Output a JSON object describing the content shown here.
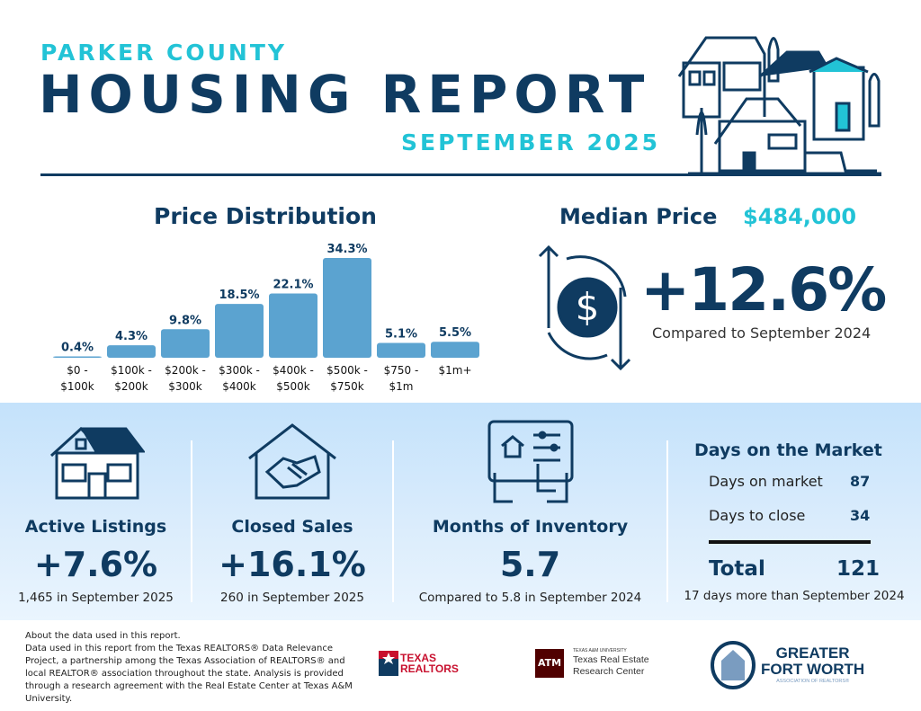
{
  "header": {
    "county": "PARKER COUNTY",
    "title": "HOUSING REPORT",
    "month": "SEPTEMBER 2025"
  },
  "price_distribution": {
    "title": "Price Distribution"
  },
  "chart_data": {
    "type": "bar",
    "title": "Price Distribution",
    "categories": [
      "$0 - $100k",
      "$100k - $200k",
      "$200k - $300k",
      "$300k - $400k",
      "$400k - $500k",
      "$500k - $750k",
      "$750 - $1m",
      "$1m+"
    ],
    "category_lines": [
      [
        "$0 -",
        "$100k"
      ],
      [
        "$100k -",
        "$200k"
      ],
      [
        "$200k -",
        "$300k"
      ],
      [
        "$300k -",
        "$400k"
      ],
      [
        "$400k -",
        "$500k"
      ],
      [
        "$500k -",
        "$750k"
      ],
      [
        "$750 -",
        "$1m"
      ],
      [
        "$1m+",
        ""
      ]
    ],
    "values": [
      0.4,
      4.3,
      9.8,
      18.5,
      22.1,
      34.3,
      5.1,
      5.5
    ],
    "labels": [
      "0.4%",
      "4.3%",
      "9.8%",
      "18.5%",
      "22.1%",
      "34.3%",
      "5.1%",
      "5.5%"
    ],
    "unit": "%",
    "bar_color": "#5ba3d0",
    "label_color": "#0f3b61"
  },
  "median": {
    "label": "Median Price",
    "value": "$484,000",
    "change": "+12.6%",
    "compare": "Compared to September 2024"
  },
  "stats": [
    {
      "label": "Active Listings",
      "value": "+7.6%",
      "sub": "1,465 in September 2025",
      "icon": "house-icon"
    },
    {
      "label": "Closed Sales",
      "value": "+16.1%",
      "sub": "260 in September 2025",
      "icon": "handshake-house-icon"
    },
    {
      "label": "Months of Inventory",
      "value": "5.7",
      "sub": "Compared to 5.8 in September 2024",
      "icon": "tablet-icon"
    }
  ],
  "dom": {
    "title": "Days on the Market",
    "rows": [
      {
        "label": "Days on market",
        "value": "87"
      },
      {
        "label": "Days to close",
        "value": "34"
      }
    ],
    "total_label": "Total",
    "total_value": "121",
    "sub": "17 days more than September 2024"
  },
  "footer": {
    "lines": [
      "About the data used in this report.",
      "Data used in this report from the Texas REALTORS® Data Relevance Project, a partnership among the Texas Association of REALTORS® and local REALTOR® association throughout the state. Analysis is provided through a research agreement with the Real Estate Center at Texas A&M University."
    ],
    "logos": {
      "texas_realtors": [
        "TEXAS",
        "REALTORS"
      ],
      "tamu": {
        "small": "TEXAS A&M UNIVERSITY",
        "line1": "Texas Real Estate",
        "line2": "Research Center"
      },
      "gfw": {
        "line1": "GREATER",
        "line2": "FORT WORTH",
        "line3": "ASSOCIATION OF REALTORS®"
      }
    }
  },
  "colors": {
    "navy": "#0f3b61",
    "cyan": "#22c3d6",
    "bar": "#5ba3d0",
    "panel": "#c4e2fb"
  }
}
